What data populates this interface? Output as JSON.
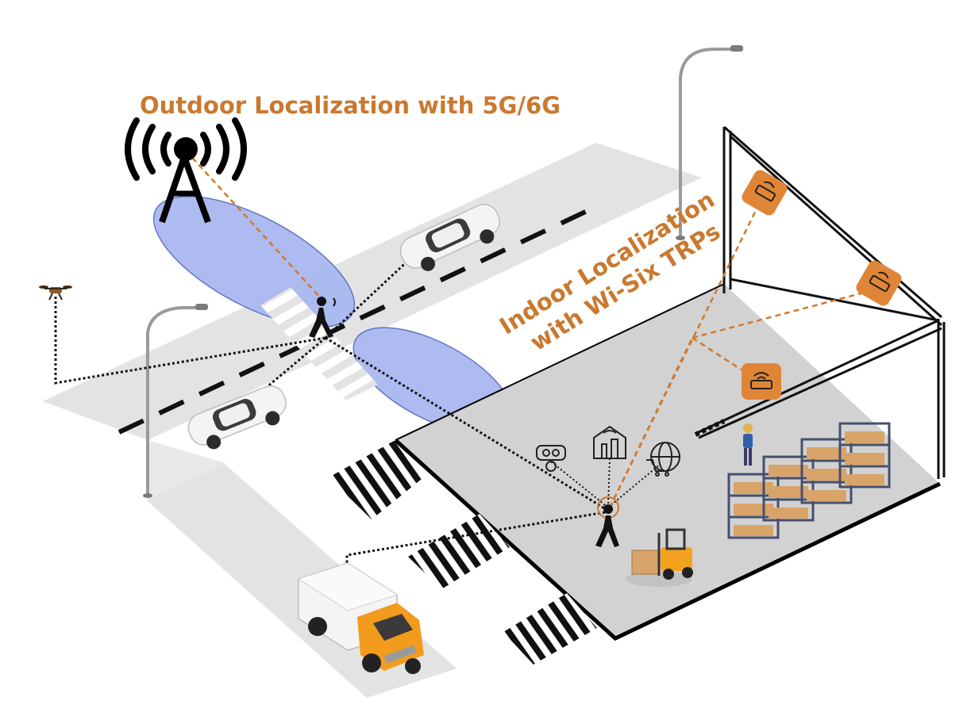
{
  "labels": {
    "outdoor": "Outdoor Localization with 5G/6G",
    "indoor_line1": "Indoor Localization",
    "indoor_line2": "with Wi-Six TRPs"
  },
  "colors": {
    "label_orange": "#c9792f",
    "coverage_blue": "#a9b8f0",
    "coverage_stroke": "#5b6fc0",
    "ground_gray": "#e3e3e3",
    "floor_gray": "#d2d2d2",
    "signal_orange": "#d0792d",
    "trp_orange": "#e08536",
    "truck_orange": "#f29b1d"
  },
  "icons": [
    "cell-tower-icon",
    "drone-icon",
    "car-icon",
    "pedestrian-icon",
    "street-lamp-icon",
    "wifi-router-icon",
    "truck-icon",
    "forklift-icon",
    "worker-icon",
    "shelving-icon",
    "vr-headset-icon",
    "smart-building-icon",
    "shopping-cart-icon"
  ]
}
